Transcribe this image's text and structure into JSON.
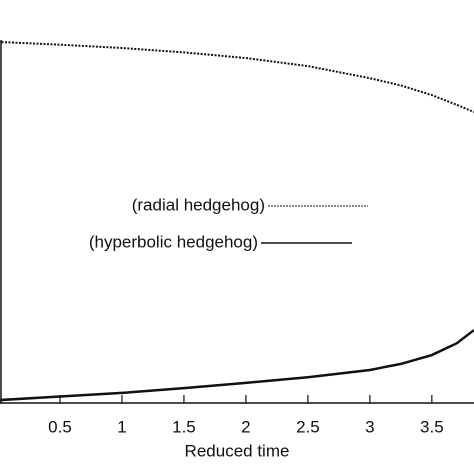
{
  "chart_data": {
    "type": "line",
    "x_label": "Reduced time",
    "x": [
      0,
      0.5,
      1,
      1.5,
      2,
      2.5,
      3,
      3.25,
      3.5,
      3.7,
      3.84
    ],
    "series": [
      {
        "name": "(radial hedgehog)",
        "color": "#111",
        "style": "dotted",
        "values": [
          0.896,
          0.889,
          0.881,
          0.87,
          0.856,
          0.836,
          0.806,
          0.788,
          0.764,
          0.74,
          0.722
        ]
      },
      {
        "name": "(hyperbolic hedgehog)",
        "color": "#111",
        "style": "solid",
        "values": [
          0.007,
          0.016,
          0.025,
          0.037,
          0.05,
          0.064,
          0.082,
          0.097,
          0.119,
          0.148,
          0.181
        ]
      }
    ],
    "xlim": [
      0,
      3.84
    ],
    "ylim": [
      0,
      1
    ],
    "xticks": [
      0.5,
      1,
      1.5,
      2,
      2.5,
      3,
      3.5
    ]
  }
}
